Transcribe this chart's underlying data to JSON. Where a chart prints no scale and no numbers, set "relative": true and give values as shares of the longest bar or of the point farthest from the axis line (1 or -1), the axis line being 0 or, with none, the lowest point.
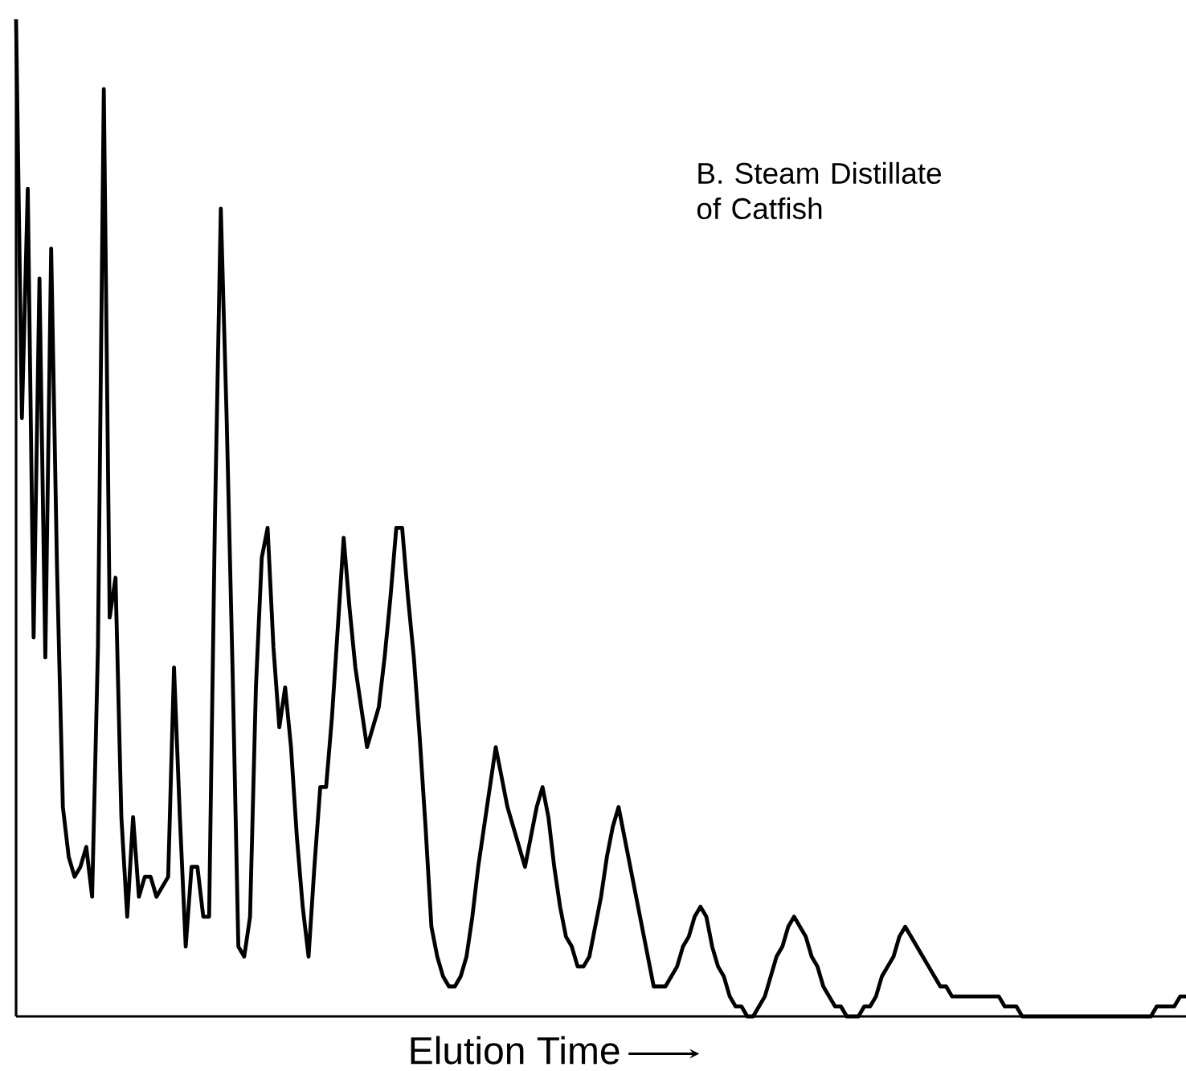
{
  "chart_data": {
    "type": "line",
    "relative": true,
    "xlabel": "Elution Time",
    "annotations": [
      "B. Steam Distillate of Catfish"
    ],
    "categories": [
      null,
      null,
      null,
      null,
      null,
      null,
      null,
      null,
      null,
      null,
      null,
      null,
      null,
      null,
      null,
      null,
      null,
      null,
      null,
      null,
      null,
      null,
      null,
      null,
      null,
      null,
      null,
      null,
      null,
      null,
      null,
      null,
      null,
      null,
      null,
      null,
      null,
      null,
      null,
      null,
      null,
      null,
      null,
      null,
      null,
      null,
      null,
      null,
      null,
      null,
      null,
      null,
      null,
      null,
      null,
      null,
      null,
      null,
      null,
      null,
      null,
      null,
      null,
      null,
      null,
      null,
      null,
      null,
      null,
      null,
      null,
      null,
      null,
      null,
      null,
      null,
      null,
      null,
      null,
      null,
      null,
      null,
      null,
      null,
      null,
      null,
      null,
      null,
      null,
      null,
      null,
      null,
      null,
      null,
      null,
      null,
      null,
      null,
      null,
      null,
      null,
      null,
      null,
      null,
      null,
      null,
      null,
      null,
      null,
      null,
      null,
      null,
      null,
      null,
      null,
      null,
      null,
      null,
      null,
      null,
      null,
      null,
      null,
      null,
      null,
      null,
      null,
      null,
      null,
      null,
      null,
      null,
      null,
      null,
      null,
      null,
      null,
      null,
      null,
      null,
      null,
      null,
      null,
      null,
      null,
      null,
      null,
      null,
      null,
      null,
      null,
      null,
      null,
      null,
      null,
      null,
      null,
      null,
      null,
      null,
      null,
      null,
      null,
      null,
      null,
      null,
      null,
      null,
      null,
      null,
      null,
      null,
      null,
      null,
      null,
      null,
      null,
      null,
      null,
      null,
      null,
      null,
      null,
      null,
      null,
      null,
      null,
      null,
      null,
      null,
      null,
      null,
      null,
      null,
      null,
      null,
      null,
      null,
      null,
      null,
      null
    ],
    "series": [
      {
        "color": "#000000",
        "values": [
          1.0,
          0.6,
          0.83,
          0.38,
          0.74,
          0.36,
          0.77,
          0.45,
          0.21,
          0.16,
          0.14,
          0.15,
          0.17,
          0.12,
          0.37,
          0.93,
          0.4,
          0.44,
          0.2,
          0.1,
          0.2,
          0.12,
          0.14,
          0.14,
          0.12,
          0.13,
          0.14,
          0.35,
          0.2,
          0.07,
          0.15,
          0.15,
          0.1,
          0.1,
          0.5,
          0.81,
          0.6,
          0.35,
          0.07,
          0.06,
          0.1,
          0.33,
          0.46,
          0.49,
          0.37,
          0.29,
          0.33,
          0.27,
          0.18,
          0.11,
          0.06,
          0.15,
          0.23,
          0.23,
          0.3,
          0.39,
          0.48,
          0.41,
          0.35,
          0.31,
          0.27,
          0.29,
          0.31,
          0.36,
          0.42,
          0.49,
          0.49,
          0.42,
          0.36,
          0.28,
          0.19,
          0.09,
          0.06,
          0.04,
          0.03,
          0.03,
          0.04,
          0.06,
          0.1,
          0.15,
          0.19,
          0.23,
          0.27,
          0.24,
          0.21,
          0.19,
          0.17,
          0.15,
          0.18,
          0.21,
          0.23,
          0.2,
          0.15,
          0.11,
          0.08,
          0.07,
          0.05,
          0.05,
          0.06,
          0.09,
          0.12,
          0.16,
          0.19,
          0.21,
          0.18,
          0.15,
          0.12,
          0.09,
          0.06,
          0.03,
          0.03,
          0.03,
          0.04,
          0.05,
          0.07,
          0.08,
          0.1,
          0.11,
          0.1,
          0.07,
          0.05,
          0.04,
          0.02,
          0.01,
          0.01,
          0,
          0,
          0.01,
          0.02,
          0.04,
          0.06,
          0.07,
          0.09,
          0.1,
          0.09,
          0.08,
          0.06,
          0.05,
          0.03,
          0.02,
          0.01,
          0.01,
          0,
          0,
          0,
          0.01,
          0.01,
          0.02,
          0.04,
          0.05,
          0.06,
          0.08,
          0.09,
          0.08,
          0.07,
          0.06,
          0.05,
          0.04,
          0.03,
          0.03,
          0.02,
          0.02,
          0.02,
          0.02,
          0.02,
          0.02,
          0.02,
          0.02,
          0.02,
          0.01,
          0.01,
          0.01,
          0,
          0,
          0,
          0,
          0,
          0,
          0,
          0,
          0,
          0,
          0,
          0,
          0,
          0,
          0,
          0,
          0,
          0,
          0,
          0,
          0,
          0,
          0,
          0.01,
          0.01,
          0.01,
          0.01,
          0.02,
          0.02
        ]
      }
    ]
  }
}
